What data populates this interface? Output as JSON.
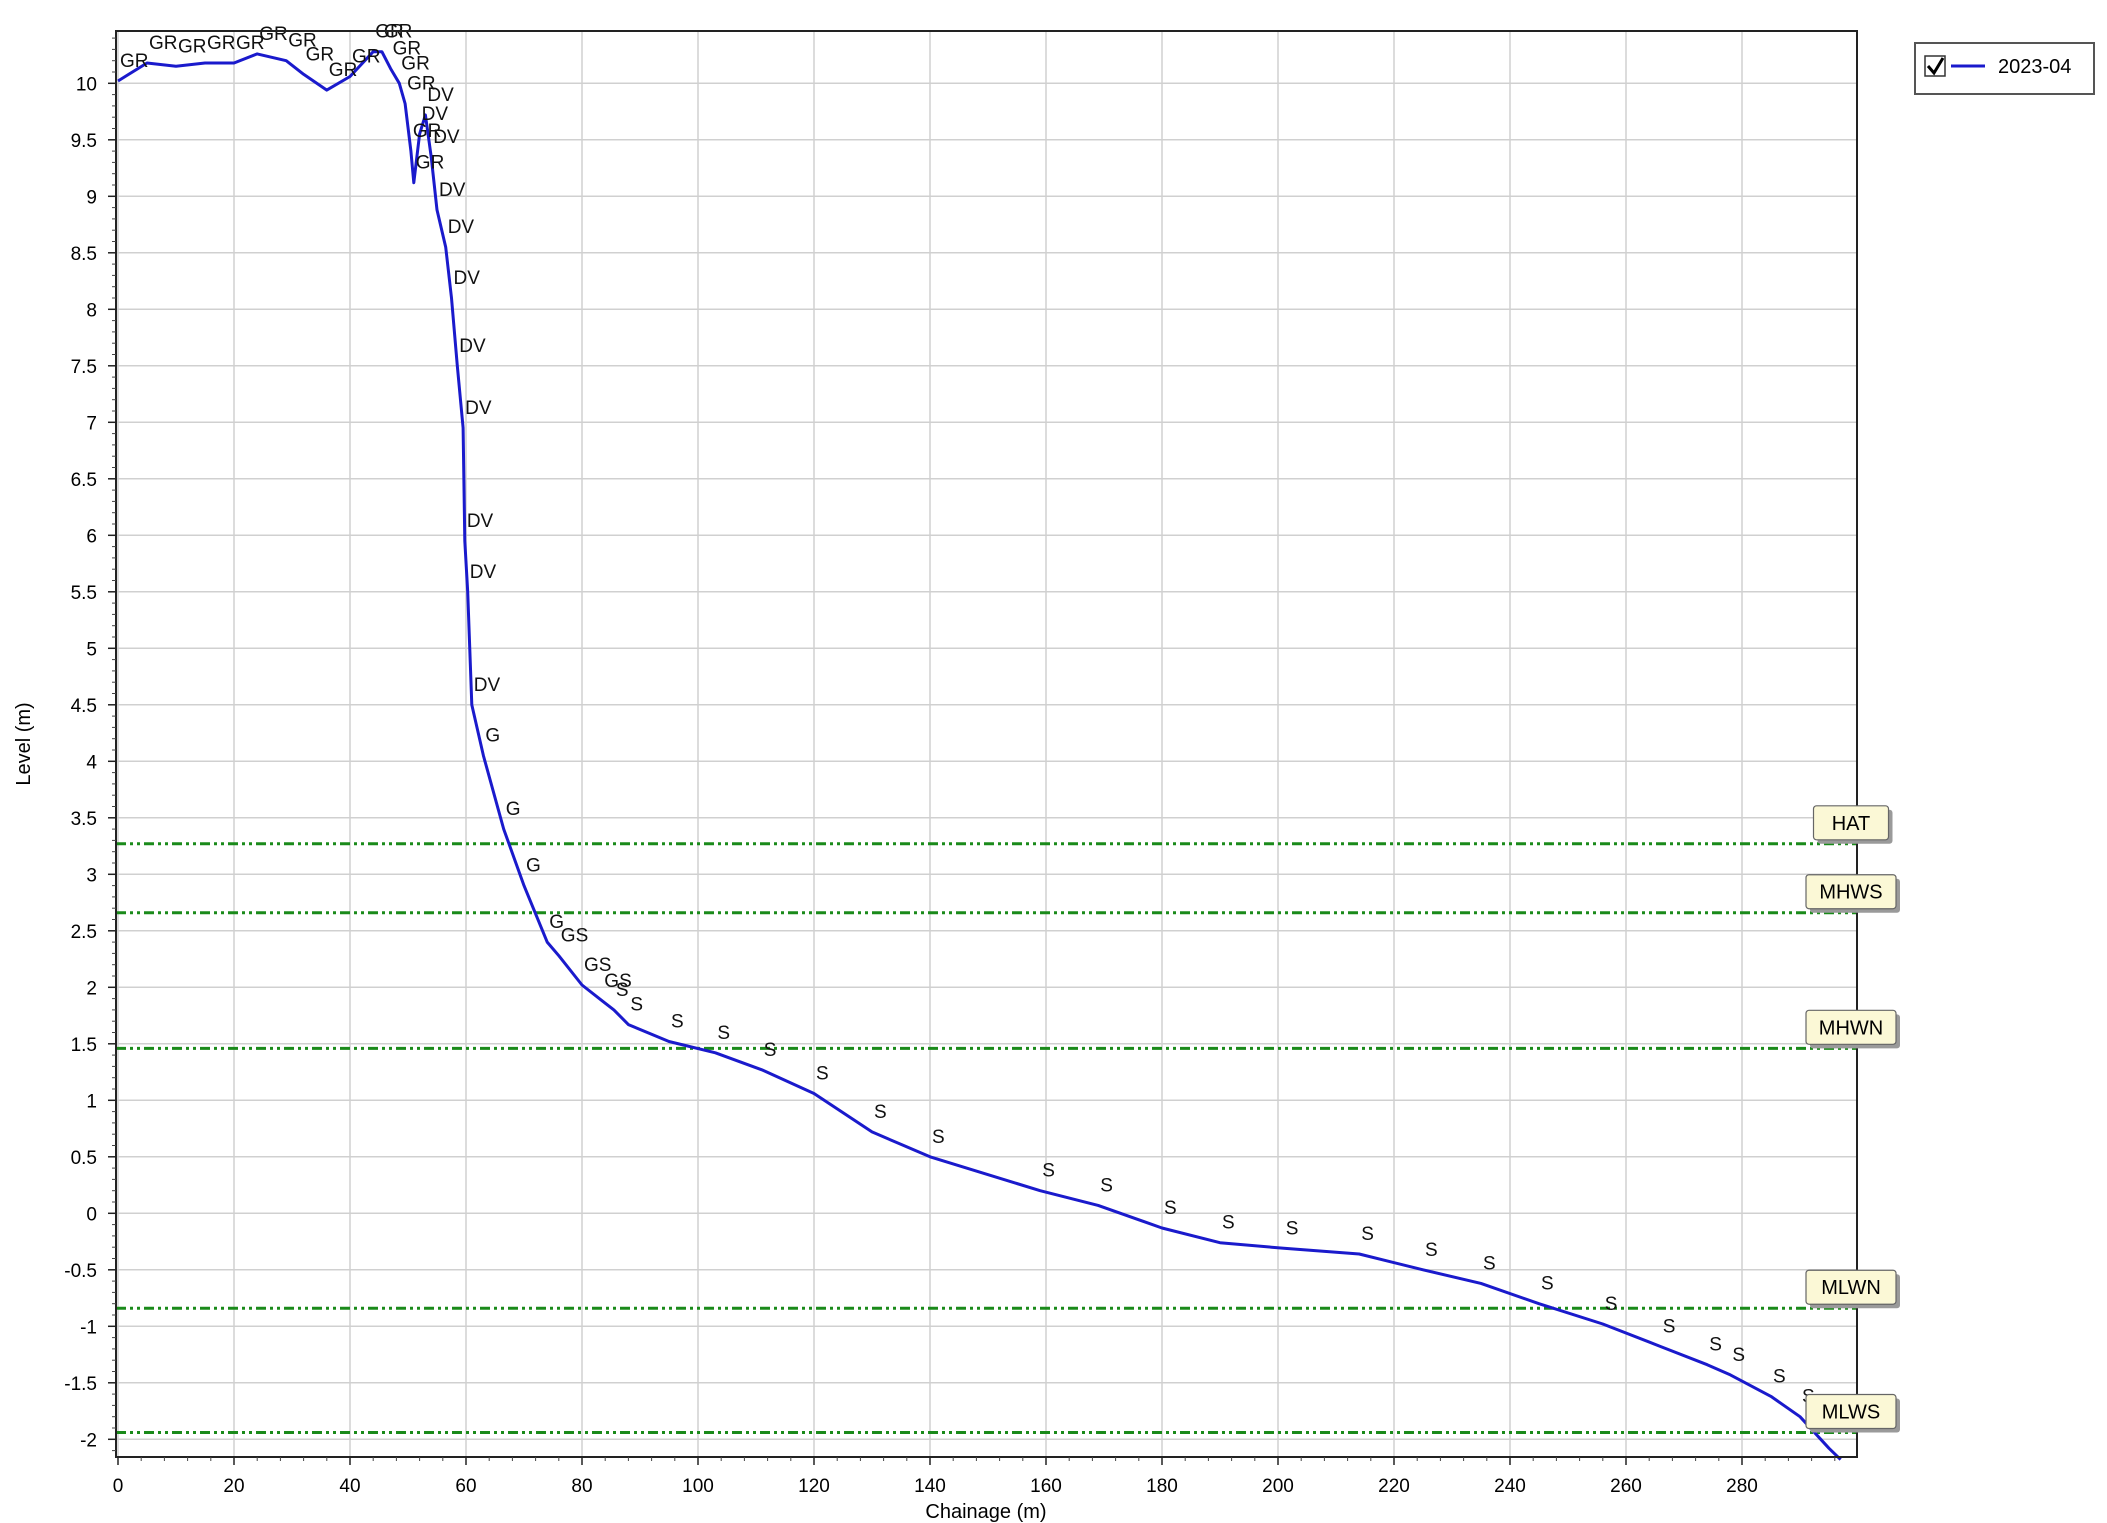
{
  "chart_data": {
    "type": "line",
    "xlabel": "Chainage (m)",
    "ylabel": "Level (m)",
    "xlim": [
      0,
      298
    ],
    "ylim": [
      -2.2,
      10.45
    ],
    "x_ticks": [
      0,
      20,
      40,
      60,
      80,
      100,
      120,
      140,
      160,
      180,
      200,
      220,
      240,
      260,
      280
    ],
    "y_ticks": [
      -2,
      -1.5,
      -1,
      -0.5,
      0,
      0.5,
      1,
      1.5,
      2,
      2.5,
      3,
      3.5,
      4,
      4.5,
      5,
      5.5,
      6,
      6.5,
      7,
      7.5,
      8,
      8.5,
      9,
      9.5,
      10
    ],
    "grid": true,
    "legend": {
      "placement": "top-right",
      "checked": true
    },
    "series": [
      {
        "name": "2023-04",
        "color": "#1a1acc",
        "points": [
          {
            "x": 0,
            "y": 10.02,
            "label": "GR"
          },
          {
            "x": 5,
            "y": 10.18,
            "label": "GR"
          },
          {
            "x": 10,
            "y": 10.15,
            "label": "GR"
          },
          {
            "x": 15,
            "y": 10.18,
            "label": "GR"
          },
          {
            "x": 20,
            "y": 10.18,
            "label": "GR"
          },
          {
            "x": 24,
            "y": 10.26,
            "label": "GR"
          },
          {
            "x": 29,
            "y": 10.2,
            "label": "GR"
          },
          {
            "x": 32,
            "y": 10.08,
            "label": "GR"
          },
          {
            "x": 36,
            "y": 9.94,
            "label": "GR"
          },
          {
            "x": 40,
            "y": 10.06,
            "label": "GR"
          },
          {
            "x": 44,
            "y": 10.28,
            "label": "GR"
          },
          {
            "x": 45.5,
            "y": 10.28,
            "label": "GR"
          },
          {
            "x": 47,
            "y": 10.13,
            "label": "GR"
          },
          {
            "x": 48.5,
            "y": 10.0,
            "label": "GR"
          },
          {
            "x": 49.5,
            "y": 9.82,
            "label": "GR"
          },
          {
            "x": 50.5,
            "y": 9.4,
            "label": "GR"
          },
          {
            "x": 51,
            "y": 9.12,
            "label": "GR"
          },
          {
            "x": 52,
            "y": 9.55,
            "label": "DV"
          },
          {
            "x": 53,
            "y": 9.72,
            "label": "DV"
          },
          {
            "x": 54,
            "y": 9.35,
            "label": "DV"
          },
          {
            "x": 55,
            "y": 8.88,
            "label": "DV"
          },
          {
            "x": 56.5,
            "y": 8.55,
            "label": "DV"
          },
          {
            "x": 57.5,
            "y": 8.1,
            "label": "DV"
          },
          {
            "x": 58.5,
            "y": 7.5,
            "label": "DV"
          },
          {
            "x": 59.5,
            "y": 6.95,
            "label": "DV"
          },
          {
            "x": 59.8,
            "y": 5.95,
            "label": "DV"
          },
          {
            "x": 60.3,
            "y": 5.5,
            "label": "DV"
          },
          {
            "x": 61,
            "y": 4.5,
            "label": "DV"
          },
          {
            "x": 63,
            "y": 4.05,
            "label": "G"
          },
          {
            "x": 66.5,
            "y": 3.4,
            "label": "G"
          },
          {
            "x": 70,
            "y": 2.9,
            "label": "G"
          },
          {
            "x": 74,
            "y": 2.4,
            "label": "G"
          },
          {
            "x": 76,
            "y": 2.28,
            "label": "GS"
          },
          {
            "x": 80,
            "y": 2.02,
            "label": "GS"
          },
          {
            "x": 83.5,
            "y": 1.88,
            "label": "GS"
          },
          {
            "x": 85.5,
            "y": 1.8,
            "label": "S"
          },
          {
            "x": 88,
            "y": 1.67,
            "label": "S"
          },
          {
            "x": 95,
            "y": 1.52,
            "label": "S"
          },
          {
            "x": 103,
            "y": 1.42,
            "label": "S"
          },
          {
            "x": 111,
            "y": 1.27,
            "label": "S"
          },
          {
            "x": 120,
            "y": 1.06,
            "label": "S"
          },
          {
            "x": 130,
            "y": 0.72,
            "label": "S"
          },
          {
            "x": 140,
            "y": 0.5,
            "label": "S"
          },
          {
            "x": 159,
            "y": 0.2,
            "label": "S"
          },
          {
            "x": 169,
            "y": 0.07,
            "label": "S"
          },
          {
            "x": 180,
            "y": -0.13,
            "label": "S"
          },
          {
            "x": 190,
            "y": -0.26,
            "label": "S"
          },
          {
            "x": 201,
            "y": -0.31,
            "label": "S"
          },
          {
            "x": 214,
            "y": -0.36,
            "label": "S"
          },
          {
            "x": 225,
            "y": -0.5,
            "label": "S"
          },
          {
            "x": 235,
            "y": -0.62,
            "label": "S"
          },
          {
            "x": 245,
            "y": -0.8,
            "label": "S"
          },
          {
            "x": 256,
            "y": -0.98,
            "label": "S"
          },
          {
            "x": 266,
            "y": -1.18,
            "label": "S"
          },
          {
            "x": 274,
            "y": -1.34,
            "label": "S"
          },
          {
            "x": 278,
            "y": -1.43,
            "label": "S"
          },
          {
            "x": 285,
            "y": -1.62,
            "label": "S"
          },
          {
            "x": 290,
            "y": -1.8,
            "label": "S"
          },
          {
            "x": 295,
            "y": -2.08,
            "label": ""
          },
          {
            "x": 297,
            "y": -2.18,
            "label": ""
          }
        ]
      }
    ],
    "reference_lines": [
      {
        "name": "HAT",
        "y": 3.27,
        "color": "#1a8a1a"
      },
      {
        "name": "MHWS",
        "y": 2.66,
        "color": "#1a8a1a"
      },
      {
        "name": "MHWN",
        "y": 1.46,
        "color": "#1a8a1a"
      },
      {
        "name": "MLWN",
        "y": -0.84,
        "color": "#1a8a1a"
      },
      {
        "name": "MLWS",
        "y": -1.94,
        "color": "#1a8a1a"
      }
    ]
  }
}
